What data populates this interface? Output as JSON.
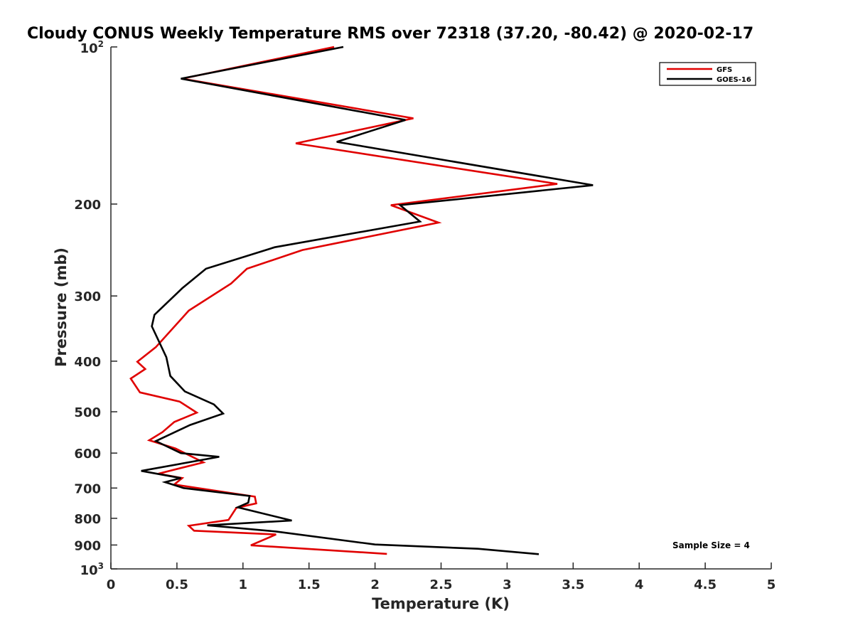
{
  "chart_data": {
    "type": "line",
    "title": "Cloudy CONUS Weekly Temperature RMS over 72318 (37.20, -80.42) @ 2020-02-17",
    "xlabel": "Temperature (K)",
    "ylabel": "Pressure (mb)",
    "xlim": [
      0,
      5
    ],
    "ylim": [
      100,
      1000
    ],
    "y_scale": "log",
    "y_reversed": true,
    "grid": false,
    "legend_placement": "top-right",
    "x_ticks": [
      "0",
      "0.5",
      "1",
      "1.5",
      "2",
      "2.5",
      "3",
      "3.5",
      "4",
      "4.5",
      "5"
    ],
    "y_ticks": [
      {
        "value": 100,
        "base": "10",
        "sup": "2"
      },
      {
        "value": 200,
        "base": "200",
        "sup": ""
      },
      {
        "value": 300,
        "base": "300",
        "sup": ""
      },
      {
        "value": 400,
        "base": "400",
        "sup": ""
      },
      {
        "value": 500,
        "base": "500",
        "sup": ""
      },
      {
        "value": 600,
        "base": "600",
        "sup": ""
      },
      {
        "value": 700,
        "base": "700",
        "sup": ""
      },
      {
        "value": 800,
        "base": "800",
        "sup": ""
      },
      {
        "value": 900,
        "base": "900",
        "sup": ""
      },
      {
        "value": 1000,
        "base": "10",
        "sup": "3"
      }
    ],
    "series": [
      {
        "name": "GFS",
        "color": "#e00000",
        "points": [
          [
            1.69,
            100
          ],
          [
            0.54,
            115
          ],
          [
            2.29,
            137
          ],
          [
            1.4,
            153
          ],
          [
            3.38,
            183
          ],
          [
            2.12,
            201
          ],
          [
            2.48,
            217
          ],
          [
            1.45,
            245
          ],
          [
            1.03,
            266
          ],
          [
            0.91,
            284
          ],
          [
            0.59,
            320
          ],
          [
            0.34,
            376
          ],
          [
            0.2,
            401
          ],
          [
            0.26,
            414
          ],
          [
            0.15,
            432
          ],
          [
            0.22,
            459
          ],
          [
            0.52,
            478
          ],
          [
            0.65,
            502
          ],
          [
            0.48,
            523
          ],
          [
            0.39,
            547
          ],
          [
            0.29,
            567
          ],
          [
            0.49,
            588
          ],
          [
            0.7,
            625
          ],
          [
            0.36,
            657
          ],
          [
            0.54,
            670
          ],
          [
            0.48,
            689
          ],
          [
            1.09,
            727
          ],
          [
            1.1,
            749
          ],
          [
            0.95,
            764
          ],
          [
            0.89,
            806
          ],
          [
            0.59,
            827
          ],
          [
            0.63,
            845
          ],
          [
            1.25,
            859
          ],
          [
            1.06,
            901
          ],
          [
            2.09,
            936
          ]
        ]
      },
      {
        "name": "GOES-16",
        "color": "#000000",
        "points": [
          [
            1.76,
            100
          ],
          [
            0.53,
            115
          ],
          [
            2.23,
            138
          ],
          [
            1.71,
            152
          ],
          [
            3.65,
            184
          ],
          [
            2.19,
            201
          ],
          [
            2.34,
            216
          ],
          [
            1.24,
            242
          ],
          [
            0.72,
            266
          ],
          [
            0.54,
            290
          ],
          [
            0.33,
            326
          ],
          [
            0.31,
            343
          ],
          [
            0.42,
            393
          ],
          [
            0.45,
            427
          ],
          [
            0.56,
            457
          ],
          [
            0.78,
            484
          ],
          [
            0.85,
            504
          ],
          [
            0.6,
            530
          ],
          [
            0.34,
            569
          ],
          [
            0.53,
            600
          ],
          [
            0.82,
            610
          ],
          [
            0.23,
            649
          ],
          [
            0.53,
            670
          ],
          [
            0.41,
            682
          ],
          [
            0.55,
            700
          ],
          [
            1.05,
            725
          ],
          [
            1.04,
            747
          ],
          [
            0.96,
            762
          ],
          [
            1.37,
            808
          ],
          [
            0.73,
            825
          ],
          [
            1.25,
            848
          ],
          [
            2.0,
            898
          ],
          [
            2.78,
            915
          ],
          [
            3.24,
            937
          ]
        ]
      }
    ],
    "annotations": [
      "Sample Size = 4"
    ]
  }
}
